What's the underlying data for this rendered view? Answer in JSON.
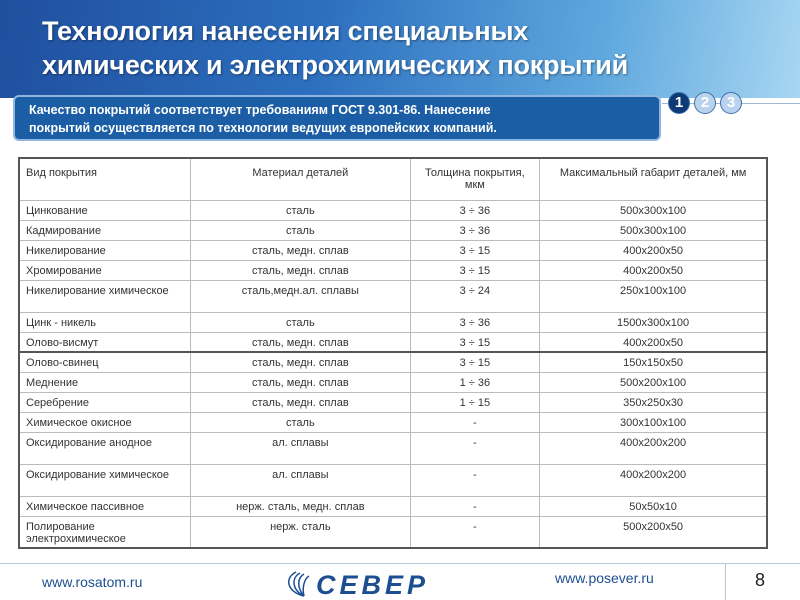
{
  "header": {
    "title_line1": "Технология нанесения специальных",
    "title_line2": "химических и электрохимических покрытий",
    "subtitle_line1": "Качество покрытий соответствует требованиям ГОСТ 9.301-86. Нанесение",
    "subtitle_line2": "покрытий осуществляется по технологии ведущих европейских компаний.",
    "steps": [
      "1",
      "2",
      "3"
    ],
    "active_step": "1"
  },
  "table": {
    "headers": [
      "Вид покрытия",
      "Материал деталей",
      "Толщина покрытия, мкм",
      "Максимальный габарит деталей, мм"
    ],
    "rows": [
      [
        "Цинкование",
        "сталь",
        "3 ÷ 36",
        "500x300x100"
      ],
      [
        "Кадмирование",
        "сталь",
        "3 ÷ 36",
        "500x300x100"
      ],
      [
        "Никелирование",
        "сталь,  медн. сплав",
        "3 ÷ 15",
        "400x200x50"
      ],
      [
        "Хромирование",
        "сталь,  медн. сплав",
        "3 ÷ 15",
        "400x200x50"
      ],
      [
        "Никелирование химическое",
        "сталь,медн.ал. сплавы",
        "3 ÷ 24",
        "250x100x100"
      ],
      [
        "Цинк - никель",
        "сталь",
        "3 ÷ 36",
        "1500x300x100"
      ],
      [
        "Олово-висмут",
        "сталь,  медн. сплав",
        "3 ÷ 15",
        "400x200x50"
      ],
      [
        "Олово-свинец",
        "сталь,  медн. сплав",
        "3 ÷ 15",
        "150x150x50"
      ],
      [
        "Меднение",
        "сталь,  медн. сплав",
        "1 ÷ 36",
        "500x200x100"
      ],
      [
        "Серебрение",
        "сталь,  медн. сплав",
        "1 ÷ 15",
        "350x250x30"
      ],
      [
        "Химическое  окисное",
        "сталь",
        "-",
        "300x100x100"
      ],
      [
        "Оксидирование анодное",
        "ал. сплавы",
        "-",
        "400x200x200"
      ],
      [
        "Оксидирование химическое",
        "ал. сплавы",
        "-",
        "400x200x200"
      ],
      [
        "Химическое пассивное",
        "нерж. сталь,  медн. сплав",
        "-",
        "50x50x10"
      ],
      [
        "Полирование электрохимическое",
        "нерж. сталь",
        "-",
        "500x200x50"
      ]
    ]
  },
  "footer": {
    "left_url": "www.rosatom.ru",
    "right_url": "www.posever.ru",
    "logo_text": "СЕВЕР",
    "page_number": "8"
  },
  "colors": {
    "brand_blue": "#1c4f91",
    "header_dark": "#1f4f9e"
  }
}
